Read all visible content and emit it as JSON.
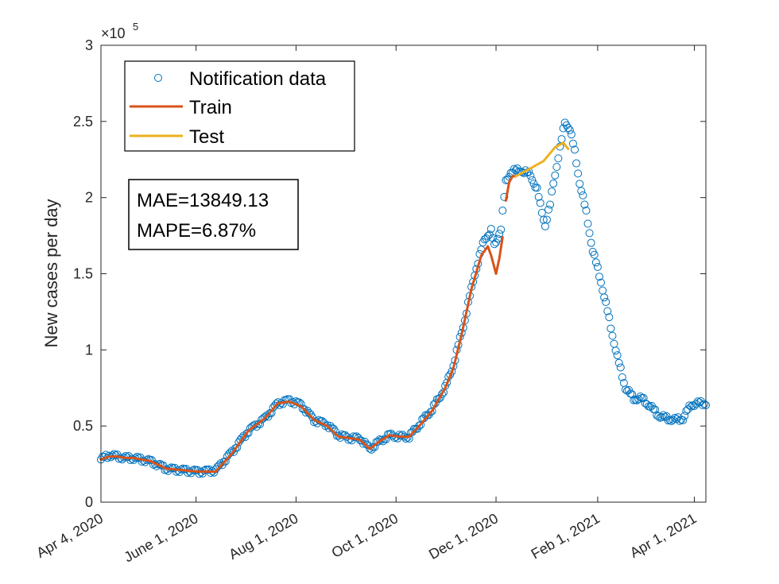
{
  "chart_data": {
    "type": "line",
    "ylabel": "New cases per day",
    "xlabel": "",
    "y_exponent_label": "×10",
    "y_exponent_power": "5",
    "ylim": [
      0,
      3
    ],
    "y_ticks": [
      0,
      0.5,
      1,
      1.5,
      2,
      2.5,
      3
    ],
    "y_tick_labels": [
      "0",
      "0.5",
      "1",
      "1.5",
      "2",
      "2.5",
      "3"
    ],
    "x_range_days": [
      0,
      369
    ],
    "x_ticks": [
      0,
      58,
      119,
      180,
      241,
      303,
      362
    ],
    "x_tick_labels": [
      "Apr 4, 2020",
      "June 1, 2020",
      "Aug 1, 2020",
      "Oct 1, 2020",
      "Dec 1, 2020",
      "Feb 1, 2021",
      "Apr 1, 2021"
    ],
    "legend": [
      "Notification data",
      "Train",
      "Test"
    ],
    "metrics": [
      "MAE=13849.13",
      "MAPE=6.87%"
    ],
    "series": [
      {
        "name": "Notification data",
        "style": "circle",
        "color": "#0072BD",
        "anchors": [
          [
            0,
            0.28
          ],
          [
            5,
            0.31
          ],
          [
            10,
            0.3
          ],
          [
            15,
            0.29
          ],
          [
            20,
            0.29
          ],
          [
            30,
            0.27
          ],
          [
            40,
            0.22
          ],
          [
            50,
            0.21
          ],
          [
            60,
            0.2
          ],
          [
            70,
            0.21
          ],
          [
            80,
            0.33
          ],
          [
            90,
            0.47
          ],
          [
            100,
            0.55
          ],
          [
            108,
            0.65
          ],
          [
            115,
            0.67
          ],
          [
            122,
            0.64
          ],
          [
            130,
            0.54
          ],
          [
            138,
            0.51
          ],
          [
            145,
            0.44
          ],
          [
            152,
            0.42
          ],
          [
            158,
            0.42
          ],
          [
            164,
            0.35
          ],
          [
            170,
            0.4
          ],
          [
            176,
            0.44
          ],
          [
            182,
            0.43
          ],
          [
            188,
            0.43
          ],
          [
            195,
            0.52
          ],
          [
            202,
            0.61
          ],
          [
            210,
            0.75
          ],
          [
            215,
            0.9
          ],
          [
            222,
            1.2
          ],
          [
            228,
            1.5
          ],
          [
            234,
            1.73
          ],
          [
            238,
            1.78
          ],
          [
            240,
            1.68
          ],
          [
            244,
            1.8
          ],
          [
            247,
            2.1
          ],
          [
            250,
            2.17
          ],
          [
            256,
            2.18
          ],
          [
            262,
            2.15
          ],
          [
            266,
            2.05
          ],
          [
            268,
            1.95
          ],
          [
            271,
            1.82
          ],
          [
            274,
            1.95
          ],
          [
            276,
            2.1
          ],
          [
            280,
            2.32
          ],
          [
            283,
            2.5
          ],
          [
            286,
            2.45
          ],
          [
            289,
            2.3
          ],
          [
            292,
            2.1
          ],
          [
            296,
            1.9
          ],
          [
            300,
            1.65
          ],
          [
            305,
            1.45
          ],
          [
            310,
            1.2
          ],
          [
            315,
            0.95
          ],
          [
            320,
            0.75
          ],
          [
            325,
            0.68
          ],
          [
            330,
            0.68
          ],
          [
            335,
            0.63
          ],
          [
            340,
            0.57
          ],
          [
            345,
            0.55
          ],
          [
            350,
            0.54
          ],
          [
            355,
            0.55
          ],
          [
            360,
            0.64
          ],
          [
            365,
            0.65
          ],
          [
            369,
            0.65
          ]
        ]
      },
      {
        "name": "Train",
        "style": "line",
        "color": "#D95319",
        "points": [
          [
            0,
            0.28
          ],
          [
            5,
            0.3
          ],
          [
            10,
            0.3
          ],
          [
            15,
            0.29
          ],
          [
            20,
            0.29
          ],
          [
            30,
            0.27
          ],
          [
            40,
            0.22
          ],
          [
            50,
            0.21
          ],
          [
            60,
            0.2
          ],
          [
            70,
            0.2
          ],
          [
            80,
            0.32
          ],
          [
            90,
            0.47
          ],
          [
            100,
            0.55
          ],
          [
            108,
            0.65
          ],
          [
            115,
            0.66
          ],
          [
            122,
            0.63
          ],
          [
            130,
            0.54
          ],
          [
            138,
            0.5
          ],
          [
            145,
            0.43
          ],
          [
            152,
            0.42
          ],
          [
            158,
            0.41
          ],
          [
            164,
            0.35
          ],
          [
            170,
            0.4
          ],
          [
            176,
            0.44
          ],
          [
            182,
            0.43
          ],
          [
            188,
            0.43
          ],
          [
            195,
            0.51
          ],
          [
            202,
            0.6
          ],
          [
            210,
            0.75
          ],
          [
            215,
            0.88
          ],
          [
            220,
            1.1
          ],
          [
            226,
            1.4
          ],
          [
            232,
            1.62
          ],
          [
            236,
            1.68
          ],
          [
            238,
            1.62
          ],
          [
            241,
            1.5
          ],
          [
            243,
            1.6
          ],
          [
            245,
            1.74
          ]
        ]
      },
      {
        "name": "Train",
        "style": "line",
        "color": "#D95319",
        "points": [
          [
            247,
            1.98
          ],
          [
            249,
            2.1
          ],
          [
            251,
            2.14
          ],
          [
            253,
            2.14
          ]
        ]
      },
      {
        "name": "Test",
        "style": "line",
        "color": "#EDB120",
        "points": [
          [
            253,
            2.14
          ],
          [
            260,
            2.18
          ],
          [
            270,
            2.24
          ],
          [
            277,
            2.33
          ],
          [
            282,
            2.36
          ],
          [
            285,
            2.32
          ]
        ]
      }
    ]
  }
}
